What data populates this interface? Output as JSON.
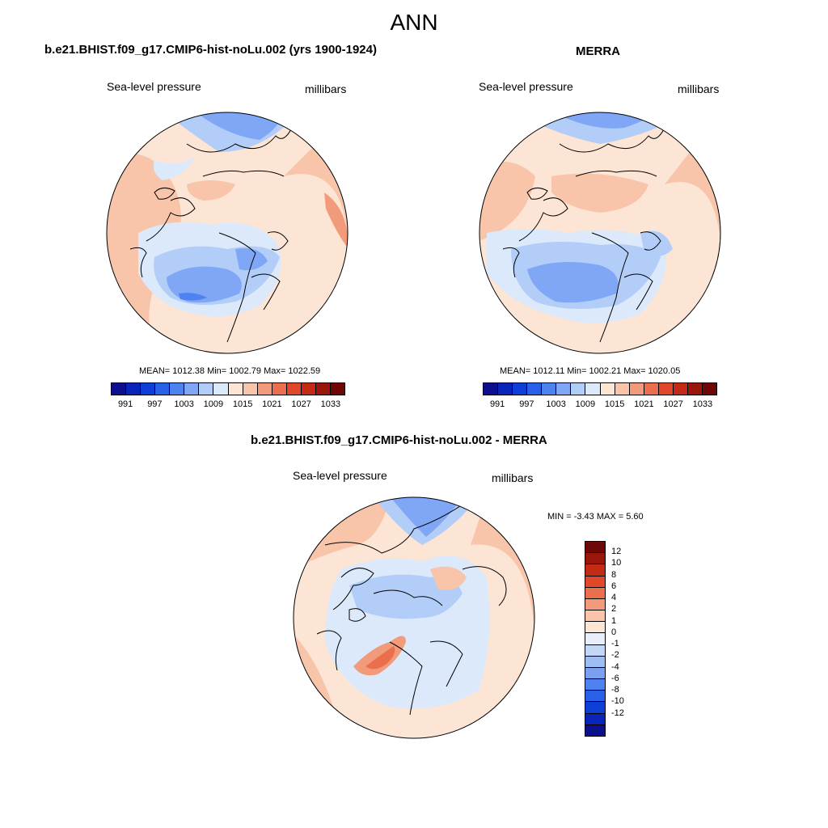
{
  "figure": {
    "title": "ANN"
  },
  "panels": [
    {
      "title": "b.e21.BHIST.f09_g17.CMIP6-hist-noLu.002 (yrs 1900-1924)",
      "variable": "Sea-level pressure",
      "units": "millibars",
      "stats": "MEAN= 1012.38  Min= 1002.79  Max= 1022.59"
    },
    {
      "title": "MERRA",
      "variable": "Sea-level pressure",
      "units": "millibars",
      "stats": "MEAN= 1012.11  Min= 1002.21  Max= 1020.05"
    },
    {
      "title": "b.e21.BHIST.f09_g17.CMIP6-hist-noLu.002 - MERRA",
      "variable": "Sea-level pressure",
      "units": "millibars",
      "stats": "MIN =  -3.43 MAX =   5.60"
    }
  ],
  "colorbars": {
    "absolute": {
      "colors": [
        "#0c0f8e",
        "#0a23b8",
        "#0d3fd6",
        "#2860e8",
        "#4e83ef",
        "#7fa7f5",
        "#b2cdf8",
        "#dbe9fb",
        "#fde5d5",
        "#f8c5aa",
        "#f29b7b",
        "#ec6f4d",
        "#e1482b",
        "#c22a15",
        "#9a150a",
        "#6e0707"
      ],
      "ticks": [
        "991",
        "997",
        "1003",
        "1009",
        "1015",
        "1021",
        "1027",
        "1033"
      ]
    },
    "difference": {
      "colors": [
        "#6e0707",
        "#9a150a",
        "#c22a15",
        "#e1482b",
        "#ec6f4d",
        "#f29b7b",
        "#f8c5aa",
        "#fde5d5",
        "#e6effb",
        "#c3d7f7",
        "#9fbdf3",
        "#7aa0ef",
        "#4e83ef",
        "#2860e8",
        "#0d3fd6",
        "#0a23b8",
        "#0c0f8e"
      ],
      "ticks": [
        "12",
        "10",
        "8",
        "6",
        "4",
        "2",
        "1",
        "0",
        "-1",
        "-2",
        "-4",
        "-6",
        "-8",
        "-10",
        "-12"
      ]
    }
  }
}
